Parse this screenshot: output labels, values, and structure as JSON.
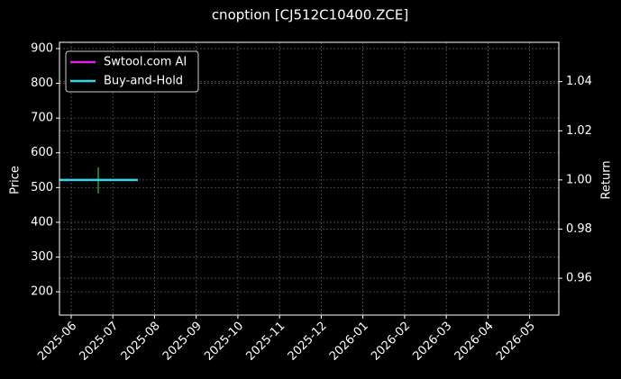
{
  "chart_data": {
    "type": "line",
    "title": "cnoption [CJ512C10400.ZCE]",
    "ylabel": "Price",
    "y2label": "Return",
    "xlim": [
      -0.28,
      11.7
    ],
    "xticks": [
      {
        "value": 0,
        "label": "2025-06"
      },
      {
        "value": 1,
        "label": "2025-07"
      },
      {
        "value": 2,
        "label": "2025-08"
      },
      {
        "value": 3,
        "label": "2025-09"
      },
      {
        "value": 4,
        "label": "2025-10"
      },
      {
        "value": 5,
        "label": "2025-11"
      },
      {
        "value": 6,
        "label": "2025-12"
      },
      {
        "value": 7,
        "label": "2026-01"
      },
      {
        "value": 8,
        "label": "2026-02"
      },
      {
        "value": 9,
        "label": "2026-03"
      },
      {
        "value": 10,
        "label": "2026-04"
      },
      {
        "value": 11,
        "label": "2026-05"
      }
    ],
    "ylim": [
      133,
      918
    ],
    "yticks": [
      200,
      300,
      400,
      500,
      600,
      700,
      800,
      900
    ],
    "y2lim": [
      0.945,
      1.056
    ],
    "y2ticks": [
      {
        "value": 0.96,
        "label": "0.96"
      },
      {
        "value": 0.98,
        "label": "0.98"
      },
      {
        "value": 1.0,
        "label": "1.00"
      },
      {
        "value": 1.02,
        "label": "1.02"
      },
      {
        "value": 1.04,
        "label": "1.04"
      }
    ],
    "grid": true,
    "legend": "upper left",
    "candles": {
      "x": [
        0.65
      ],
      "high": [
        558
      ],
      "low": [
        483
      ],
      "color": "#2ca02c"
    },
    "series": [
      {
        "name": "Swtool.com AI",
        "color": "#e020e0",
        "axis": "y2",
        "x": [],
        "values": []
      },
      {
        "name": "Buy-and-Hold",
        "color": "#30d8e8",
        "axis": "y2",
        "x": [
          -0.28,
          1.6
        ],
        "values": [
          1.0,
          1.0
        ]
      }
    ]
  }
}
